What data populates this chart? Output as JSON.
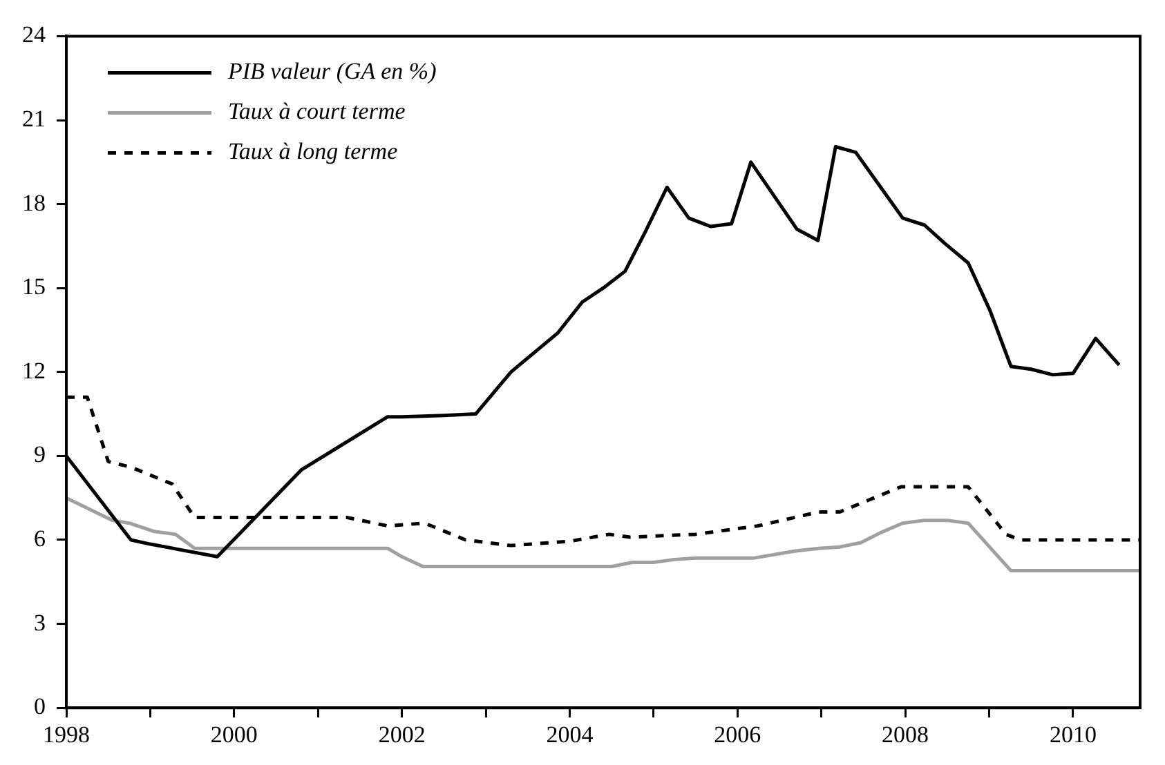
{
  "chart_data": {
    "type": "line",
    "xlim": [
      1998,
      2010.8
    ],
    "xticks": [
      1998,
      {
        "value": 1999,
        "label": null
      },
      2000,
      {
        "value": 2001,
        "label": null
      },
      2002,
      {
        "value": 2003,
        "label": null
      },
      2004,
      {
        "value": 2005,
        "label": null
      },
      2006,
      {
        "value": 2007,
        "label": null
      },
      2008,
      {
        "value": 2009,
        "label": null
      },
      2010
    ],
    "ylim": [
      0,
      24
    ],
    "yticks": [
      0,
      3,
      6,
      9,
      12,
      15,
      18,
      21,
      24
    ],
    "grid": false,
    "legend": "top left",
    "marker": "none",
    "series": [
      {
        "name": "PIB valeur (GA en %)",
        "color": "#000000",
        "line_style": "solid",
        "x": [
          1998.0,
          1998.77,
          1999.0,
          1999.8,
          2000.8,
          2001.83,
          2002.0,
          2002.5,
          2002.88,
          2003.3,
          2003.86,
          2004.15,
          2004.4,
          2004.66,
          2004.9,
          2005.16,
          2005.42,
          2005.68,
          2005.93,
          2006.16,
          2006.71,
          2006.96,
          2007.17,
          2007.41,
          2007.97,
          2008.23,
          2008.47,
          2008.75,
          2009.01,
          2009.26,
          2009.5,
          2009.76,
          2010.0,
          2010.27,
          2010.55
        ],
        "values": [
          9.0,
          6.0,
          5.85,
          5.4,
          8.5,
          10.4,
          10.4,
          10.45,
          10.5,
          12.0,
          13.4,
          14.5,
          15.0,
          15.6,
          17.0,
          18.6,
          17.5,
          17.2,
          17.3,
          19.5,
          17.1,
          16.7,
          20.05,
          19.85,
          17.5,
          17.25,
          16.6,
          15.9,
          14.2,
          12.2,
          12.1,
          11.9,
          11.95,
          13.2,
          12.25
        ]
      },
      {
        "name": "Taux à court terme",
        "color": "#a0a0a0",
        "line_style": "solid",
        "x": [
          1998.0,
          1998.55,
          1998.75,
          1999.05,
          1999.3,
          1999.53,
          2001.83,
          2002.0,
          2002.25,
          2004.5,
          2004.75,
          2005.0,
          2005.25,
          2005.5,
          2006.19,
          2006.68,
          2006.97,
          2007.22,
          2007.47,
          2007.7,
          2007.97,
          2008.23,
          2008.5,
          2008.75,
          2009.26,
          2010.79
        ],
        "values": [
          7.5,
          6.7,
          6.6,
          6.3,
          6.2,
          5.7,
          5.7,
          5.4,
          5.05,
          5.05,
          5.2,
          5.2,
          5.3,
          5.35,
          5.35,
          5.6,
          5.7,
          5.75,
          5.9,
          6.25,
          6.6,
          6.7,
          6.7,
          6.6,
          4.9,
          4.9
        ]
      },
      {
        "name": "Taux à long terme",
        "color": "#000000",
        "line_style": "dashed",
        "x": [
          1998.0,
          1998.25,
          1998.5,
          1998.77,
          1999.26,
          1999.53,
          2001.35,
          2001.83,
          2002.27,
          2002.76,
          2003.3,
          2004.0,
          2004.47,
          2004.72,
          2005.5,
          2006.24,
          2006.97,
          2007.22,
          2007.95,
          2008.75,
          2009.2,
          2009.37,
          2010.79
        ],
        "values": [
          11.1,
          11.1,
          8.8,
          8.6,
          8.0,
          6.8,
          6.8,
          6.5,
          6.6,
          6.0,
          5.8,
          5.95,
          6.2,
          6.1,
          6.2,
          6.5,
          7.0,
          7.0,
          7.9,
          7.9,
          6.2,
          6.0,
          6.0
        ]
      }
    ]
  }
}
